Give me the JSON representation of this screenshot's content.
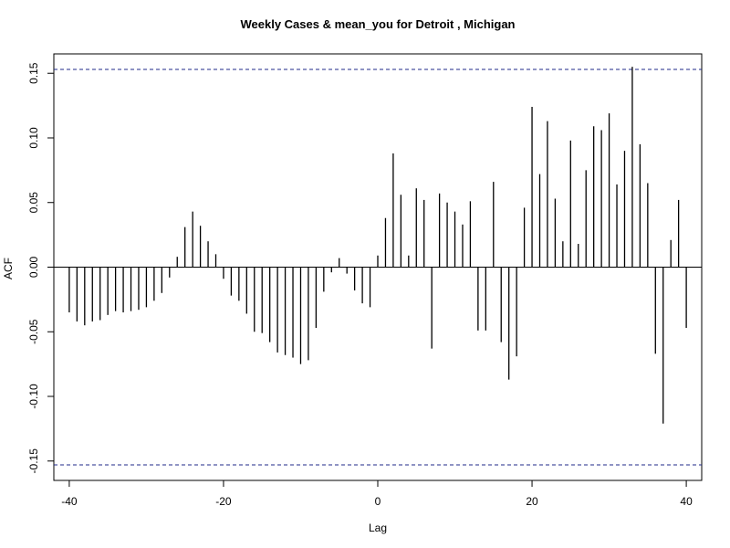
{
  "chart_data": {
    "type": "bar",
    "title": "Weekly Cases & mean_you for Detroit , Michigan",
    "xlabel": "Lag",
    "ylabel": "ACF",
    "xlim": [
      -42,
      42
    ],
    "ylim": [
      -0.165,
      0.165
    ],
    "x_ticks": [
      -40,
      -20,
      0,
      20,
      40
    ],
    "x_tick_labels": [
      "-40",
      "-20",
      "0",
      "20",
      "40"
    ],
    "y_ticks": [
      -0.15,
      -0.1,
      -0.05,
      0.0,
      0.05,
      0.1,
      0.15
    ],
    "y_tick_labels": [
      "-0.15",
      "-0.10",
      "-0.05",
      "0.00",
      "0.05",
      "0.10",
      "0.15"
    ],
    "confidence_bound": 0.153,
    "lags": [
      -40,
      -39,
      -38,
      -37,
      -36,
      -35,
      -34,
      -33,
      -32,
      -31,
      -30,
      -29,
      -28,
      -27,
      -26,
      -25,
      -24,
      -23,
      -22,
      -21,
      -20,
      -19,
      -18,
      -17,
      -16,
      -15,
      -14,
      -13,
      -12,
      -11,
      -10,
      -9,
      -8,
      -7,
      -6,
      -5,
      -4,
      -3,
      -2,
      -1,
      0,
      1,
      2,
      3,
      4,
      5,
      6,
      7,
      8,
      9,
      10,
      11,
      12,
      13,
      14,
      15,
      16,
      17,
      18,
      19,
      20,
      21,
      22,
      23,
      24,
      25,
      26,
      27,
      28,
      29,
      30,
      31,
      32,
      33,
      34,
      35,
      36,
      37,
      38,
      39,
      40
    ],
    "values": [
      -0.035,
      -0.042,
      -0.045,
      -0.042,
      -0.041,
      -0.037,
      -0.034,
      -0.035,
      -0.034,
      -0.033,
      -0.031,
      -0.026,
      -0.02,
      -0.008,
      0.008,
      0.031,
      0.043,
      0.032,
      0.02,
      0.01,
      -0.009,
      -0.022,
      -0.026,
      -0.036,
      -0.05,
      -0.051,
      -0.058,
      -0.066,
      -0.068,
      -0.07,
      -0.075,
      -0.072,
      -0.047,
      -0.019,
      -0.004,
      0.007,
      -0.005,
      -0.018,
      -0.028,
      -0.031,
      0.009,
      0.038,
      0.088,
      0.056,
      0.009,
      0.061,
      0.052,
      -0.063,
      0.057,
      0.05,
      0.043,
      0.033,
      0.051,
      -0.049,
      -0.049,
      0.066,
      -0.058,
      -0.087,
      -0.069,
      0.046,
      0.124,
      0.072,
      0.113,
      0.053,
      0.02,
      0.098,
      0.018,
      0.075,
      0.109,
      0.106,
      0.119,
      0.064,
      0.09,
      0.155,
      0.095,
      0.065,
      -0.067,
      -0.121,
      0.021,
      0.052,
      -0.047
    ]
  }
}
